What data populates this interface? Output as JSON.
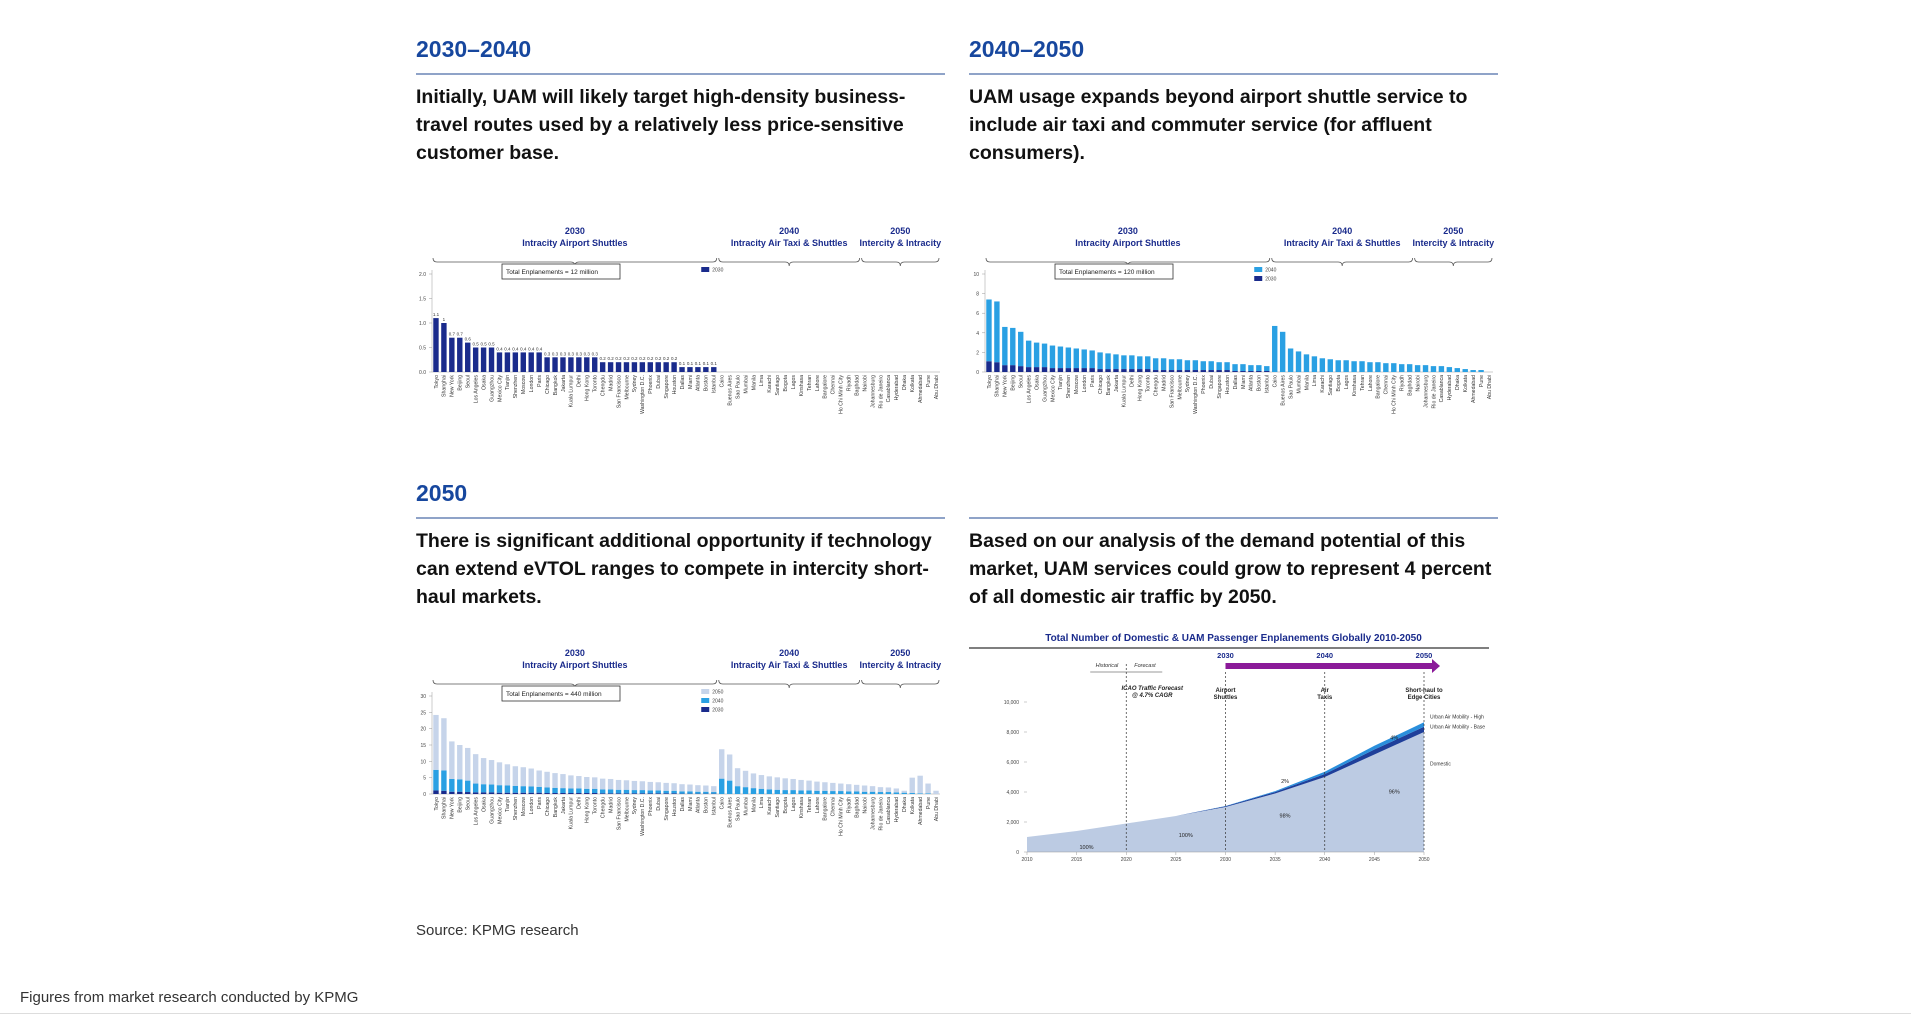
{
  "headings": [
    "2030–2040",
    "2040–2050",
    "2050"
  ],
  "paragraphs": [
    "Initially, UAM will likely target high-density business-travel routes used by a relatively less price-sensitive customer base.",
    "UAM usage expands beyond airport shuttle service to include air taxi and commuter service (for affluent consumers).",
    "There is significant additional opportunity if technology can extend eVTOL ranges to compete in intercity short-haul markets.",
    "Based on our analysis of the demand potential of this market, UAM services could grow to represent 4 percent of all domestic air traffic by 2050."
  ],
  "source": "Source: KPMG research",
  "caption": "Figures from market research conducted by KPMG",
  "chart_data": [
    {
      "type": "bar",
      "categories": [
        "Tokyo",
        "Shanghai",
        "New York",
        "Beijing",
        "Seoul",
        "Los Angeles",
        "Osaka",
        "Guangzhou",
        "Mexico City",
        "Tianjin",
        "Shenzhen",
        "Moscow",
        "London",
        "Paris",
        "Chicago",
        "Bangkok",
        "Jakarta",
        "Kuala Lumpur",
        "Delhi",
        "Hong Kong",
        "Toronto",
        "Chengdu",
        "Madrid",
        "San Francisco",
        "Melbourne",
        "Sydney",
        "Washington D.C.",
        "Phoenix",
        "Dubai",
        "Singapore",
        "Houston",
        "Dallas",
        "Miami",
        "Atlanta",
        "Boston",
        "Istanbul",
        "Cairo",
        "Buenos Aires",
        "Sao Paulo",
        "Mumbai",
        "Manila",
        "Lima",
        "Karachi",
        "Santiago",
        "Bogota",
        "Lagos",
        "Kinshasa",
        "Tehran",
        "Lahore",
        "Bangalore",
        "Chennai",
        "Ho Chi Minh City",
        "Riyadh",
        "Baghdad",
        "Nairobi",
        "Johannesburg",
        "Rio de Janeiro",
        "Casablanca",
        "Hyderabad",
        "Dhaka",
        "Kolkata",
        "Ahmedabad",
        "Pune",
        "Abu Dhabi"
      ],
      "regions": [
        {
          "year": "2030",
          "label": "Intracity Airport Shuttles"
        },
        {
          "year": "2040",
          "label": "Intracity Air Taxi & Shuttles"
        },
        {
          "year": "2050",
          "label": "Intercity & Intracity"
        }
      ],
      "total": "Total Enplanements = 12 million",
      "ylim": [
        0,
        2
      ],
      "yticks": [
        {
          "value": 0,
          "label": "0.0"
        },
        0.5,
        {
          "value": 1,
          "label": "1.0"
        },
        1.5,
        {
          "value": 2,
          "label": "2.0"
        }
      ],
      "value_labels_shown": true,
      "series": [
        {
          "name": "2030",
          "color": "#1a2b8c",
          "values": [
            1.1,
            1.0,
            0.7,
            0.7,
            0.6,
            0.5,
            0.5,
            0.5,
            0.4,
            0.4,
            0.4,
            0.4,
            0.4,
            0.4,
            0.3,
            0.3,
            0.3,
            0.3,
            0.3,
            0.3,
            0.3,
            0.2,
            0.2,
            0.2,
            0.2,
            0.2,
            0.2,
            0.2,
            0.2,
            0.2,
            0.2,
            0.1,
            0.1,
            0.1,
            0.1,
            0.1,
            0,
            0,
            0,
            0,
            0,
            0,
            0,
            0,
            0,
            0,
            0,
            0,
            0,
            0,
            0,
            0,
            0,
            0,
            0,
            0,
            0,
            0,
            0,
            0,
            0,
            0,
            0,
            0
          ]
        }
      ]
    },
    {
      "type": "bar",
      "total": "Total Enplanements = 120 million",
      "ylim": [
        0,
        10
      ],
      "yticks": [
        0,
        2,
        4,
        6,
        8,
        10
      ],
      "series": [
        {
          "name": "2040",
          "color": "#2aa0e3",
          "values": [
            6.3,
            6.2,
            3.9,
            3.8,
            3.5,
            2.7,
            2.5,
            2.4,
            2.3,
            2.2,
            2.1,
            2.0,
            1.9,
            1.8,
            1.7,
            1.6,
            1.5,
            1.4,
            1.4,
            1.3,
            1.3,
            1.2,
            1.2,
            1.1,
            1.1,
            1.0,
            1.0,
            0.9,
            0.9,
            0.8,
            0.8,
            0.7,
            0.7,
            0.6,
            0.6,
            0.5,
            4.7,
            4.1,
            2.4,
            2.1,
            1.8,
            1.6,
            1.4,
            1.3,
            1.2,
            1.2,
            1.1,
            1.1,
            1.0,
            1.0,
            0.9,
            0.9,
            0.8,
            0.8,
            0.7,
            0.7,
            0.6,
            0.6,
            0.5,
            0.4,
            0.3,
            0.2,
            0.2,
            0
          ]
        },
        {
          "name": "2030",
          "color": "#1a2b8c",
          "values": [
            1.1,
            1.0,
            0.7,
            0.7,
            0.6,
            0.5,
            0.5,
            0.5,
            0.4,
            0.4,
            0.4,
            0.4,
            0.4,
            0.4,
            0.3,
            0.3,
            0.3,
            0.3,
            0.3,
            0.3,
            0.3,
            0.2,
            0.2,
            0.2,
            0.2,
            0.2,
            0.2,
            0.2,
            0.2,
            0.2,
            0.2,
            0.1,
            0.1,
            0.1,
            0.1,
            0.1,
            0,
            0,
            0,
            0,
            0,
            0,
            0,
            0,
            0,
            0,
            0,
            0,
            0,
            0,
            0,
            0,
            0,
            0,
            0,
            0,
            0,
            0,
            0,
            0,
            0,
            0,
            0,
            0
          ]
        }
      ]
    },
    {
      "type": "bar",
      "total": "Total Enplanements = 440 million",
      "ylim": [
        0,
        30
      ],
      "yticks": [
        0,
        5,
        10,
        15,
        20,
        25,
        30
      ],
      "series": [
        {
          "name": "2050",
          "color": "#c6d4ea",
          "values": [
            16.8,
            16.0,
            11.5,
            10.5,
            10.0,
            9.0,
            8.0,
            7.5,
            7.0,
            6.5,
            6.0,
            5.8,
            5.5,
            5.0,
            4.8,
            4.5,
            4.3,
            4.0,
            3.8,
            3.6,
            3.5,
            3.3,
            3.2,
            3.0,
            2.9,
            2.8,
            2.7,
            2.6,
            2.5,
            2.4,
            2.3,
            2.2,
            2.1,
            2.0,
            1.9,
            1.8,
            9.0,
            8.0,
            5.5,
            5.0,
            4.5,
            4.2,
            4.0,
            3.8,
            3.6,
            3.4,
            3.2,
            3.0,
            2.8,
            2.6,
            2.5,
            2.3,
            2.2,
            2.0,
            1.9,
            1.7,
            1.5,
            1.4,
            1.2,
            0.6,
            4.7,
            5.4,
            3.0,
            1.0
          ]
        },
        {
          "name": "2040",
          "color": "#2aa0e3",
          "values": [
            6.3,
            6.2,
            3.9,
            3.8,
            3.5,
            2.7,
            2.5,
            2.4,
            2.3,
            2.2,
            2.1,
            2.0,
            1.9,
            1.8,
            1.7,
            1.6,
            1.5,
            1.4,
            1.4,
            1.3,
            1.3,
            1.2,
            1.2,
            1.1,
            1.1,
            1.0,
            1.0,
            0.9,
            0.9,
            0.8,
            0.8,
            0.7,
            0.7,
            0.6,
            0.6,
            0.5,
            4.7,
            4.1,
            2.4,
            2.1,
            1.8,
            1.6,
            1.4,
            1.3,
            1.2,
            1.2,
            1.1,
            1.1,
            1.0,
            1.0,
            0.9,
            0.9,
            0.8,
            0.8,
            0.7,
            0.7,
            0.6,
            0.6,
            0.5,
            0.4,
            0.3,
            0.2,
            0.2,
            0
          ]
        },
        {
          "name": "2030",
          "color": "#1a2b8c",
          "values": [
            1.1,
            1.0,
            0.7,
            0.7,
            0.6,
            0.5,
            0.5,
            0.5,
            0.4,
            0.4,
            0.4,
            0.4,
            0.4,
            0.4,
            0.3,
            0.3,
            0.3,
            0.3,
            0.3,
            0.3,
            0.3,
            0.2,
            0.2,
            0.2,
            0.2,
            0.2,
            0.2,
            0.2,
            0.2,
            0.2,
            0.2,
            0.1,
            0.1,
            0.1,
            0.1,
            0.1,
            0,
            0,
            0,
            0,
            0,
            0,
            0,
            0,
            0,
            0,
            0,
            0,
            0,
            0,
            0,
            0,
            0,
            0,
            0,
            0,
            0,
            0,
            0,
            0,
            0,
            0,
            0,
            0
          ]
        }
      ]
    },
    {
      "type": "area",
      "title": "Total Number of Domestic & UAM Passenger Enplanements Globally 2010-2050",
      "x": [
        2010,
        2015,
        2020,
        2025,
        2030,
        2035,
        2040,
        2045,
        2050
      ],
      "xlim": [
        2010,
        2050
      ],
      "xticks": [
        2010,
        2015,
        2020,
        2025,
        2030,
        2035,
        2040,
        2045,
        2050
      ],
      "ylim": [
        0,
        10000
      ],
      "yticks": [
        0,
        {
          "value": 2000,
          "label": "2,000"
        },
        {
          "value": 4000,
          "label": "4,000"
        },
        {
          "value": 6000,
          "label": "6,000"
        },
        {
          "value": 8000,
          "label": "8,000"
        },
        {
          "value": 10000,
          "label": "10,000"
        }
      ],
      "series": [
        {
          "name": "Domestic",
          "color": "#bccbe3",
          "values": [
            1000,
            1400,
            1900,
            2400,
            3000,
            3900,
            5000,
            6500,
            8000
          ]
        },
        {
          "name": "Urban Air Mobility - Base",
          "color": "#1f3f9a",
          "values": [
            0,
            0,
            0,
            0,
            50,
            100,
            200,
            330,
            350
          ]
        },
        {
          "name": "Urban Air Mobility - High",
          "color": "#2a8fdc",
          "values": [
            0,
            0,
            0,
            0,
            20,
            60,
            150,
            250,
            300
          ]
        }
      ],
      "historical": "Historical",
      "forecast": "Forecast",
      "forecast_start": 2020,
      "icao": [
        "ICAO Traffic Forecast",
        "@ 4.7% CAGR"
      ],
      "milestones": [
        2030,
        2040,
        2050
      ],
      "stages": [
        [
          "Airport",
          "Shuttles"
        ],
        [
          "Air",
          "Taxis"
        ],
        [
          "Short-haul to",
          "Edge Cities"
        ]
      ],
      "share_labels": [
        "100%",
        "100%",
        "98%",
        "2%",
        "96%",
        "4%"
      ]
    }
  ]
}
